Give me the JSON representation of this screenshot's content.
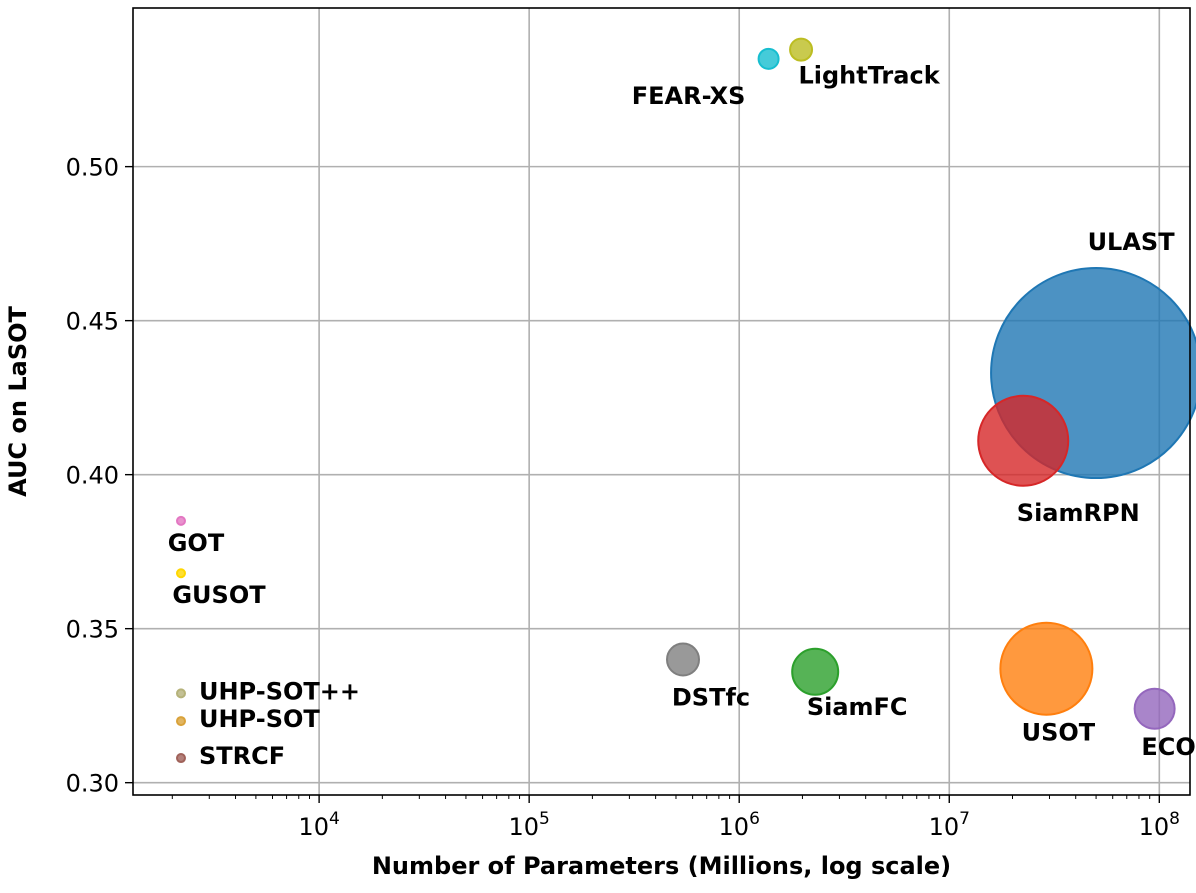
{
  "chart_data": {
    "type": "scatter",
    "title": "",
    "xlabel": "Number of Parameters (Millions, log scale)",
    "ylabel": "AUC on LaSOT",
    "x_scale": "log",
    "xlim": [
      1300,
      140000000
    ],
    "ylim": [
      0.296,
      0.5515
    ],
    "grid": true,
    "x_ticks": [
      {
        "value": 10000,
        "base": "10",
        "exp": "4"
      },
      {
        "value": 100000,
        "base": "10",
        "exp": "5"
      },
      {
        "value": 1000000,
        "base": "10",
        "exp": "6"
      },
      {
        "value": 10000000,
        "base": "10",
        "exp": "7"
      },
      {
        "value": 100000000,
        "base": "10",
        "exp": "8"
      }
    ],
    "y_ticks": [
      {
        "value": 0.3,
        "label": "0.30"
      },
      {
        "value": 0.35,
        "label": "0.35"
      },
      {
        "value": 0.4,
        "label": "0.40"
      },
      {
        "value": 0.45,
        "label": "0.45"
      },
      {
        "value": 0.5,
        "label": "0.50"
      }
    ],
    "points": [
      {
        "name": "ULAST",
        "x": 50000000,
        "y": 0.433,
        "size": 105,
        "color": "#1f77b4",
        "label_pos": "above-right"
      },
      {
        "name": "SiamRPN",
        "x": 22500000,
        "y": 0.411,
        "size": 45,
        "color": "#d62728",
        "label_pos": "below-right"
      },
      {
        "name": "USOT",
        "x": 29000000,
        "y": 0.337,
        "size": 46,
        "color": "#ff7f0e",
        "label_pos": "below"
      },
      {
        "name": "ECO",
        "x": 95000000,
        "y": 0.324,
        "size": 20,
        "color": "#9467bd",
        "label_pos": "below"
      },
      {
        "name": "SiamFC",
        "x": 2300000,
        "y": 0.336,
        "size": 23,
        "color": "#2ca02c",
        "label_pos": "below"
      },
      {
        "name": "DSTfc",
        "x": 540000,
        "y": 0.34,
        "size": 16,
        "color": "#7f7f7f",
        "label_pos": "below"
      },
      {
        "name": "FEAR-XS",
        "x": 1380000,
        "y": 0.535,
        "size": 10,
        "color": "#17becf",
        "label_pos": "below-left"
      },
      {
        "name": "LightTrack",
        "x": 1970000,
        "y": 0.538,
        "size": 11,
        "color": "#bcbd22",
        "label_pos": "below-right"
      },
      {
        "name": "GOT",
        "x": 2200,
        "y": 0.385,
        "size": 4,
        "color": "#e377c2",
        "label_pos": "below"
      },
      {
        "name": "GUSOT",
        "x": 2200,
        "y": 0.368,
        "size": 4,
        "color": "#ffd700",
        "label_pos": "below"
      },
      {
        "name": "UHP-SOT++",
        "x": 2200,
        "y": 0.329,
        "size": 4,
        "color": "#b5b27a",
        "label_pos": "right"
      },
      {
        "name": "UHP-SOT",
        "x": 2200,
        "y": 0.32,
        "size": 4,
        "color": "#d9a23a",
        "label_pos": "right"
      },
      {
        "name": "STRCF",
        "x": 2200,
        "y": 0.308,
        "size": 4,
        "color": "#a0625a",
        "label_pos": "right"
      }
    ]
  }
}
